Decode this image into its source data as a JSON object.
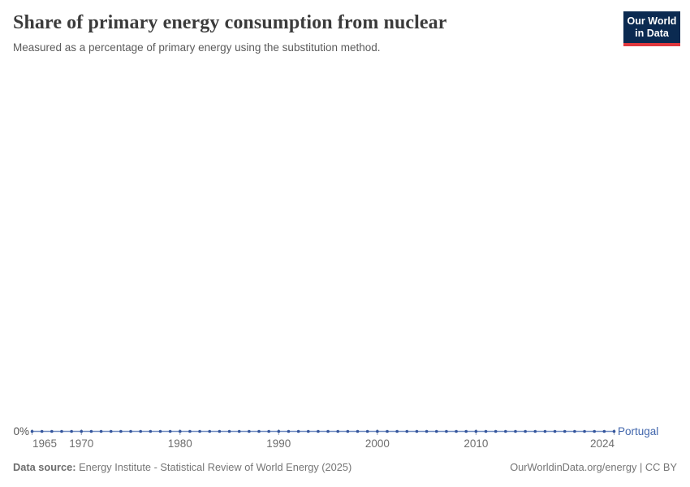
{
  "header": {
    "title": "Share of primary energy consumption from nuclear",
    "subtitle": "Measured as a percentage of primary energy using the substitution method.",
    "logo": {
      "line1": "Our World",
      "line2": "in Data",
      "bg_color": "#0b2a51",
      "accent_color": "#e0383e"
    }
  },
  "chart_data": {
    "type": "line",
    "title": "Share of primary energy consumption from nuclear",
    "subtitle": "Measured as a percentage of primary energy using the substitution method.",
    "unit": "%",
    "xlim": [
      1965,
      2024
    ],
    "ylim": [
      0,
      0
    ],
    "grid": false,
    "legend_position": "end-of-line",
    "x_ticks": [
      1965,
      1970,
      1980,
      1990,
      2000,
      2010,
      2024
    ],
    "y_tick_labels": [
      "0%"
    ],
    "series": [
      {
        "name": "Portugal",
        "color": "#4166ac",
        "marker_color": "#33549b",
        "x": [
          1965,
          1966,
          1967,
          1968,
          1969,
          1970,
          1971,
          1972,
          1973,
          1974,
          1975,
          1976,
          1977,
          1978,
          1979,
          1980,
          1981,
          1982,
          1983,
          1984,
          1985,
          1986,
          1987,
          1988,
          1989,
          1990,
          1991,
          1992,
          1993,
          1994,
          1995,
          1996,
          1997,
          1998,
          1999,
          2000,
          2001,
          2002,
          2003,
          2004,
          2005,
          2006,
          2007,
          2008,
          2009,
          2010,
          2011,
          2012,
          2013,
          2014,
          2015,
          2016,
          2017,
          2018,
          2019,
          2020,
          2021,
          2022,
          2023,
          2024
        ],
        "values": [
          0,
          0,
          0,
          0,
          0,
          0,
          0,
          0,
          0,
          0,
          0,
          0,
          0,
          0,
          0,
          0,
          0,
          0,
          0,
          0,
          0,
          0,
          0,
          0,
          0,
          0,
          0,
          0,
          0,
          0,
          0,
          0,
          0,
          0,
          0,
          0,
          0,
          0,
          0,
          0,
          0,
          0,
          0,
          0,
          0,
          0,
          0,
          0,
          0,
          0,
          0,
          0,
          0,
          0,
          0,
          0,
          0,
          0,
          0,
          0
        ]
      }
    ],
    "colors": {
      "axis_text": "#6e6e6e",
      "y_label_text": "#565656",
      "tick_mark": "#93a0b5"
    }
  },
  "footer": {
    "datasource_label": "Data source:",
    "datasource": "Energy Institute - Statistical Review of World Energy (2025)",
    "attribution": "OurWorldinData.org/energy | CC BY"
  }
}
